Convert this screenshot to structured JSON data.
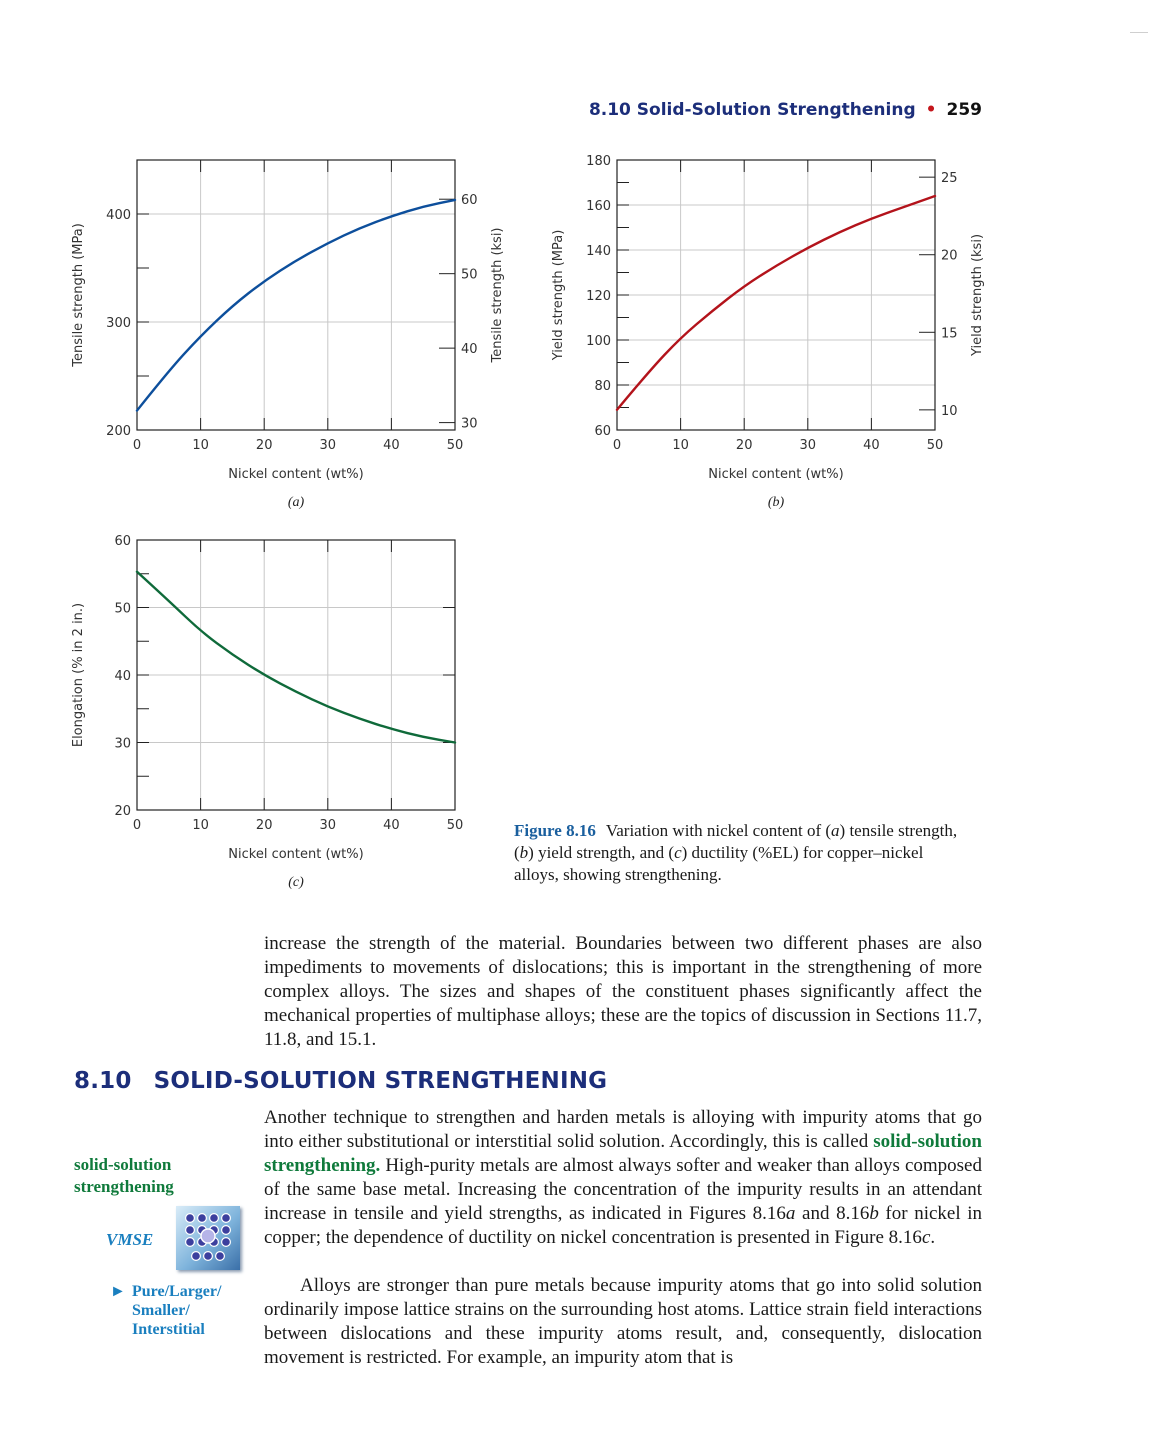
{
  "running_head": {
    "section": "8.10 Solid-Solution Strengthening",
    "page_number": "259"
  },
  "chart_data": [
    {
      "id": "a",
      "type": "line",
      "panel_label": "(a)",
      "xlabel": "Nickel content (wt%)",
      "ylabel": "Tensile strength (MPa)",
      "ylabel_right": "Tensile strength (ksi)",
      "xlim": [
        0,
        50
      ],
      "ylim": [
        200,
        450
      ],
      "x_ticks": [
        0,
        10,
        20,
        30,
        40,
        50
      ],
      "y_ticks": [
        200,
        300,
        400
      ],
      "y_ticks_right": [
        30,
        40,
        50,
        60
      ],
      "ksi_to_mpa": 6.895,
      "grid": true,
      "color": "#0d4f9c",
      "series": [
        {
          "x": [
            0,
            5,
            10,
            15,
            20,
            25,
            30,
            35,
            40,
            45,
            50
          ],
          "y": [
            218,
            255,
            287,
            315,
            338,
            357,
            373,
            387,
            398,
            407,
            413
          ]
        }
      ]
    },
    {
      "id": "b",
      "type": "line",
      "panel_label": "(b)",
      "xlabel": "Nickel content (wt%)",
      "ylabel": "Yield strength (MPa)",
      "ylabel_right": "Yield strength (ksi)",
      "xlim": [
        0,
        50
      ],
      "ylim": [
        60,
        180
      ],
      "x_ticks": [
        0,
        10,
        20,
        30,
        40,
        50
      ],
      "y_ticks": [
        60,
        80,
        100,
        120,
        140,
        160,
        180
      ],
      "y_ticks_right": [
        10,
        15,
        20,
        25
      ],
      "ksi_to_mpa": 6.895,
      "grid": true,
      "color": "#b3131b",
      "series": [
        {
          "x": [
            0,
            5,
            10,
            15,
            20,
            25,
            30,
            35,
            40,
            45,
            50
          ],
          "y": [
            69,
            86,
            101,
            113,
            124,
            133,
            141,
            148,
            154,
            159,
            164
          ]
        }
      ]
    },
    {
      "id": "c",
      "type": "line",
      "panel_label": "(c)",
      "xlabel": "Nickel content (wt%)",
      "ylabel": "Elongation (% in 2 in.)",
      "ylabel_right": "",
      "xlim": [
        0,
        50
      ],
      "ylim": [
        20,
        60
      ],
      "x_ticks": [
        0,
        10,
        20,
        30,
        40,
        50
      ],
      "y_ticks": [
        20,
        30,
        40,
        50,
        60
      ],
      "y_ticks_right": [],
      "ksi_to_mpa": 1,
      "grid": true,
      "color": "#0f6a3a",
      "series": [
        {
          "x": [
            0,
            5,
            10,
            15,
            20,
            25,
            30,
            35,
            40,
            45,
            50
          ],
          "y": [
            55.3,
            51,
            46.5,
            43,
            40,
            37.5,
            35.3,
            33.5,
            32,
            30.8,
            30
          ]
        }
      ]
    }
  ],
  "caption": {
    "label": "Figure 8.16",
    "t1": "Variation with nickel content of (",
    "i1": "a",
    "t2": ") tensile strength, (",
    "i2": "b",
    "t3": ") yield strength, and (",
    "i3": "c",
    "t4": ") ductility (%EL) for copper–nickel alloys, showing strengthening."
  },
  "paragraph_1": "increase the strength of the material. Boundaries between two different phases are also impediments to movements of dislocations; this is important in the strengthening of more complex alloys. The sizes and shapes of the constituent phases significantly affect the mechanical properties of multiphase alloys; these are the topics of discussion in Sections 11.7, 11.8, and 15.1.",
  "section": {
    "number": "8.10",
    "title": "SOLID-SOLUTION STRENGTHENING"
  },
  "margin_term": "solid-solution strengthening",
  "vmse": {
    "label": "VMSE",
    "link_arrow": "►",
    "link_text": "Pure/Larger/ Smaller/ Interstitial"
  },
  "paragraph_2": {
    "a": "Another technique to strengthen and harden metals is alloying with impurity atoms that go into either substitutional or interstitial solid solution. Accordingly, this is called ",
    "term": "solid-solution strengthening.",
    "b": " High-purity metals are almost always softer and weaker than alloys composed of the same base metal. Increasing the concentration of the impurity results in an attendant increase in tensile and yield strengths, as indicated in Figures 8.16",
    "fa": "a",
    "c": " and 8.16",
    "fb": "b",
    "d": " for nickel in copper; the dependence of ductility on nickel concentration is presented in Figure 8.16",
    "fc": "c",
    "e": "."
  },
  "paragraph_3": "Alloys are stronger than pure metals because impurity atoms that go into solid solution ordinarily impose lattice strains on the surrounding host atoms. Lattice strain field interactions between dislocations and these impurity atoms result, and, consequently, dislocation movement is restricted. For example, an impurity atom that is"
}
